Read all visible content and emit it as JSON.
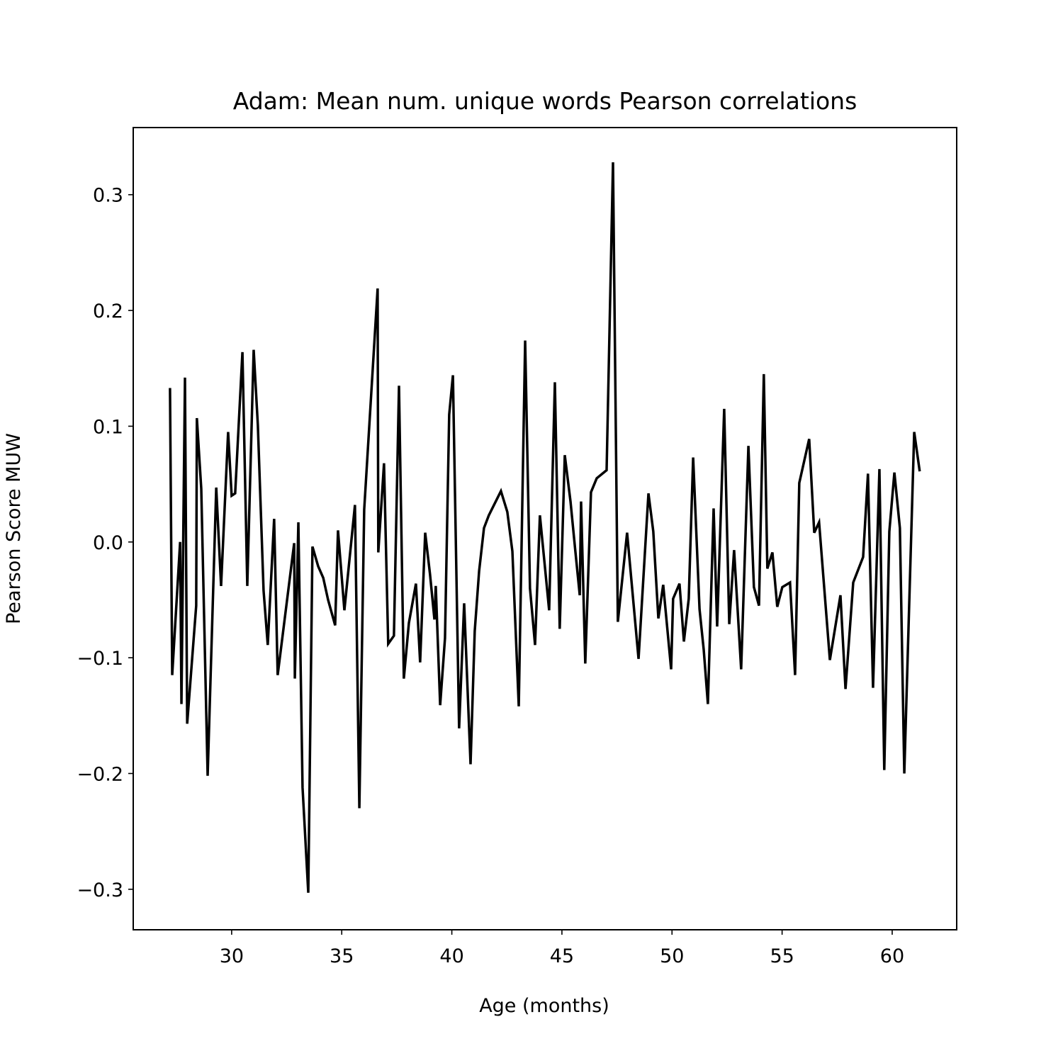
{
  "chart_data": {
    "type": "line",
    "title": "Adam: Mean num. unique words Pearson correlations",
    "x_label": "Age (months)",
    "y_label": "Pearson Score MUW",
    "color": "#000000",
    "x": [
      27.2,
      27.3,
      27.66,
      27.72,
      27.88,
      27.98,
      28.39,
      28.42,
      28.62,
      28.91,
      29.3,
      29.52,
      29.84,
      30.0,
      30.16,
      30.49,
      30.71,
      31.0,
      31.19,
      31.45,
      31.64,
      31.93,
      32.09,
      32.84,
      32.87,
      33.03,
      33.22,
      33.48,
      33.67,
      33.93,
      34.16,
      34.38,
      34.7,
      34.83,
      35.12,
      35.6,
      35.8,
      36.02,
      36.63,
      36.66,
      36.92,
      37.11,
      37.37,
      37.6,
      37.82,
      38.05,
      38.37,
      38.56,
      38.79,
      39.01,
      39.21,
      39.27,
      39.47,
      39.69,
      39.88,
      40.05,
      40.33,
      40.56,
      40.85,
      41.04,
      41.24,
      41.46,
      41.68,
      42.23,
      42.52,
      42.75,
      43.04,
      43.33,
      43.55,
      43.78,
      44.0,
      44.42,
      44.68,
      44.9,
      45.13,
      45.39,
      45.61,
      45.81,
      45.87,
      46.06,
      46.32,
      46.58,
      47.03,
      47.32,
      47.54,
      47.96,
      48.48,
      48.93,
      49.15,
      49.38,
      49.6,
      49.96,
      50.05,
      50.34,
      50.54,
      50.76,
      50.96,
      51.25,
      51.44,
      51.63,
      51.89,
      52.05,
      52.37,
      52.6,
      52.82,
      53.14,
      53.47,
      53.72,
      53.95,
      54.17,
      54.33,
      54.56,
      54.78,
      55.01,
      55.36,
      55.59,
      55.78,
      56.23,
      56.46,
      56.68,
      57.17,
      57.65,
      57.88,
      58.23,
      58.68,
      58.9,
      59.13,
      59.42,
      59.64,
      59.87,
      60.1,
      60.35,
      60.55,
      61.0,
      61.25
    ],
    "values": [
      0.133,
      -0.115,
      0.0,
      -0.14,
      0.142,
      -0.157,
      -0.055,
      0.107,
      0.046,
      -0.202,
      0.047,
      -0.038,
      0.095,
      0.04,
      0.042,
      0.164,
      -0.038,
      0.166,
      0.101,
      -0.042,
      -0.089,
      0.02,
      -0.115,
      -0.001,
      -0.118,
      0.017,
      -0.212,
      -0.303,
      -0.004,
      -0.021,
      -0.031,
      -0.05,
      -0.072,
      0.01,
      -0.059,
      0.032,
      -0.23,
      0.028,
      0.219,
      -0.009,
      0.068,
      -0.088,
      -0.081,
      0.135,
      -0.118,
      -0.07,
      -0.036,
      -0.104,
      0.008,
      -0.028,
      -0.067,
      -0.038,
      -0.141,
      -0.083,
      0.11,
      0.144,
      -0.161,
      -0.053,
      -0.192,
      -0.077,
      -0.025,
      0.012,
      0.023,
      0.044,
      0.026,
      -0.008,
      -0.142,
      0.174,
      -0.04,
      -0.089,
      0.023,
      -0.059,
      0.138,
      -0.075,
      0.075,
      0.035,
      -0.008,
      -0.046,
      0.035,
      -0.105,
      0.043,
      0.055,
      0.062,
      0.328,
      -0.069,
      0.008,
      -0.101,
      0.042,
      0.009,
      -0.066,
      -0.037,
      -0.11,
      -0.049,
      -0.036,
      -0.086,
      -0.049,
      0.073,
      -0.058,
      -0.093,
      -0.14,
      0.029,
      -0.073,
      0.115,
      -0.071,
      -0.007,
      -0.11,
      0.083,
      -0.039,
      -0.055,
      0.145,
      -0.023,
      -0.009,
      -0.056,
      -0.039,
      -0.035,
      -0.115,
      0.051,
      0.089,
      0.008,
      0.017,
      -0.102,
      -0.046,
      -0.127,
      -0.035,
      -0.013,
      0.059,
      -0.126,
      0.063,
      -0.197,
      0.009,
      0.06,
      0.012,
      -0.2,
      0.095,
      0.061
    ],
    "xlim": [
      25.53,
      62.93
    ],
    "xticks": [
      30,
      35,
      40,
      45,
      50,
      55,
      60
    ],
    "ylim": [
      -0.335,
      0.358
    ],
    "yticks": [
      {
        "value": -0.3,
        "label": "−0.3"
      },
      {
        "value": -0.2,
        "label": "−0.2"
      },
      {
        "value": -0.1,
        "label": "−0.1"
      },
      {
        "value": 0,
        "label": "0.0"
      },
      0.1,
      0.2,
      0.3
    ],
    "grid": false
  }
}
